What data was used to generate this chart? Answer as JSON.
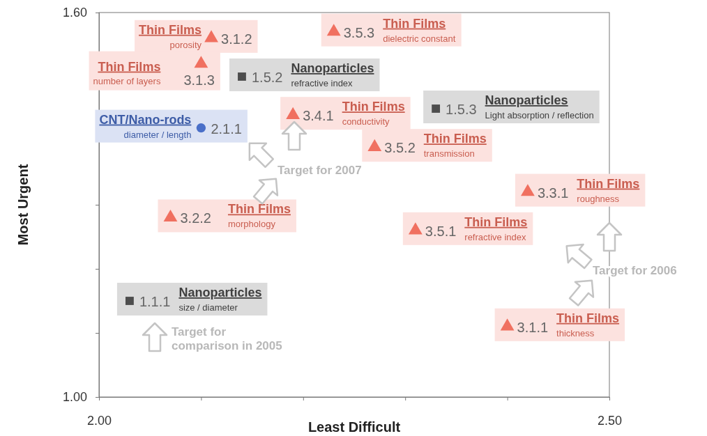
{
  "chart_data": {
    "type": "scatter",
    "xlabel": "Least Difficult",
    "ylabel": "Most Urgent",
    "xlim": [
      2.0,
      2.5
    ],
    "ylim": [
      1.0,
      1.6
    ],
    "xticks": [
      {
        "value": 2.0,
        "label": "2.00"
      },
      {
        "value": 2.1,
        "label": null
      },
      {
        "value": 2.2,
        "label": null
      },
      {
        "value": 2.3,
        "label": null
      },
      {
        "value": 2.4,
        "label": null
      },
      {
        "value": 2.5,
        "label": "2.50"
      }
    ],
    "yticks": [
      {
        "value": 1.0,
        "label": "1.00"
      },
      {
        "value": 1.1,
        "label": null
      },
      {
        "value": 1.2,
        "label": null
      },
      {
        "value": 1.3,
        "label": null
      },
      {
        "value": 1.4,
        "label": null
      },
      {
        "value": 1.5,
        "label": null
      },
      {
        "value": 1.6,
        "label": "1.60"
      }
    ],
    "series": [
      {
        "name": "Thin Films",
        "color": "#f07060",
        "marker": "triangle",
        "x": [
          2.11,
          2.23,
          2.1,
          2.19,
          2.27,
          2.42,
          2.07,
          2.31,
          2.4
        ],
        "values": [
          1.56,
          1.57,
          1.52,
          1.44,
          1.39,
          1.32,
          1.28,
          1.26,
          1.11
        ]
      },
      {
        "name": "Nanoparticles",
        "color": "#4d4d4d",
        "marker": "square",
        "x": [
          2.14,
          2.33,
          2.03
        ],
        "values": [
          1.5,
          1.45,
          1.15
        ]
      },
      {
        "name": "CNT/Nano-rods",
        "color": "#4a6fc8",
        "marker": "circle",
        "x": [
          2.1
        ],
        "values": [
          1.42
        ]
      }
    ],
    "annotations": [
      "3.1.2",
      "porosity",
      "3.5.3",
      "dielectric constant",
      "3.1.3",
      "number of layers",
      "3.4.1",
      "conductivity",
      "3.5.2",
      "transmission",
      "3.3.1",
      "roughness",
      "3.2.2",
      "morphology",
      "3.5.1",
      "refractive index",
      "3.1.1",
      "thickness",
      "1.5.2",
      "refractive index",
      "1.5.3",
      "Light absorption / reflection",
      "1.1.1",
      "size / diameter",
      "2.1.1",
      "diameter / length",
      "Target for 2007",
      "Target for 2006",
      "Target for comparison in 2005"
    ]
  }
}
